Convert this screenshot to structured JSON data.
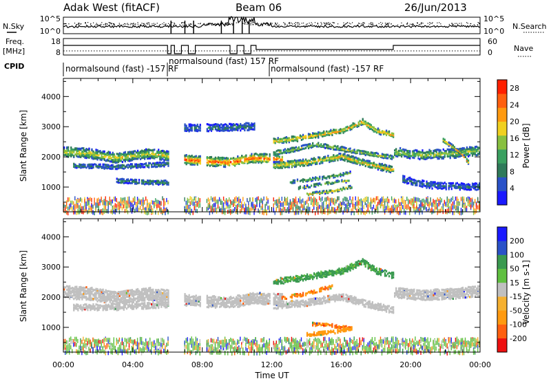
{
  "header": {
    "radar": "Adak West (fitACF)",
    "beam": "Beam 06",
    "date": "26/Jun/2013"
  },
  "noise_panel": {
    "left_label": "N.Sky",
    "right_label": "N.Search",
    "left_ticks": [
      "10^5",
      "10^0"
    ],
    "right_ticks": [
      "10^5",
      "10^0"
    ]
  },
  "freq_panel": {
    "left_label_1": "Freq.",
    "left_label_2": "[MHz]",
    "right_label": "Nave",
    "left_ticks": [
      "18",
      "8"
    ],
    "right_ticks": [
      "60",
      "0"
    ]
  },
  "cpid": {
    "label": "CPID",
    "segments": [
      {
        "text": "normalsound (fast) -157 RF",
        "start_hour": 0,
        "end_hour": 6
      },
      {
        "text": "normalsound (fast) 157 RF",
        "start_hour": 6,
        "end_hour": 12
      },
      {
        "text": "normalsound (fast) -157 RF",
        "start_hour": 12,
        "end_hour": 24
      }
    ]
  },
  "colorbars": {
    "power": {
      "label": "Power [dB]",
      "ticks": [
        "28",
        "24",
        "20",
        "16",
        "12",
        "8",
        "4"
      ]
    },
    "velocity": {
      "label": "Velocity [m s-1]",
      "ticks": [
        "200",
        "100",
        "50",
        "15",
        "-15",
        "-50",
        "-100",
        "-200"
      ]
    }
  },
  "chart_data": [
    {
      "type": "heatmap",
      "panel": "power",
      "ylabel": "Slant Range [km]",
      "ylim": [
        180,
        4600
      ],
      "yticks": [
        1000,
        2000,
        3000,
        4000
      ],
      "xlim": [
        0,
        24
      ],
      "xticks": [
        "00:00",
        "04:00",
        "08:00",
        "12:00",
        "16:00",
        "20:00",
        "00:00"
      ],
      "colorbar_label": "Power [dB]",
      "colorbar_range": [
        0,
        30
      ],
      "colors": [
        "#1a1aff",
        "#2a52c8",
        "#2f7a5a",
        "#3aa060",
        "#88c040",
        "#f0d020",
        "#ff9a10",
        "#ff6010",
        "#ff2000"
      ],
      "bands": [
        {
          "t": [
            0,
            1.5,
            3,
            5,
            6.1
          ],
          "r": [
            2200,
            2150,
            2000,
            2150,
            2050
          ],
          "width": 320,
          "peak": 18
        },
        {
          "t": [
            0.5,
            3,
            6.1
          ],
          "r": [
            1750,
            1700,
            1800
          ],
          "width": 160,
          "peak": 9
        },
        {
          "t": [
            3,
            4.5,
            6.1
          ],
          "r": [
            1250,
            1200,
            1180
          ],
          "width": 150,
          "peak": 10
        },
        {
          "t": [
            6.9,
            8,
            9.5,
            11,
            12.6
          ],
          "r": [
            1950,
            1900,
            1850,
            2000,
            1950
          ],
          "width": 300,
          "peak": 26
        },
        {
          "t": [
            6.9,
            9,
            11
          ],
          "r": [
            3000,
            3000,
            3050
          ],
          "width": 260,
          "peak": 8
        },
        {
          "t": [
            12,
            13.5,
            15,
            16,
            17.2,
            18,
            19
          ],
          "r": [
            2550,
            2650,
            2800,
            2900,
            3200,
            2900,
            2750
          ],
          "width": 180,
          "peak": 22
        },
        {
          "t": [
            12,
            13,
            14.5,
            16,
            17,
            18,
            19
          ],
          "r": [
            2150,
            2250,
            2450,
            2300,
            2200,
            2100,
            2000
          ],
          "width": 150,
          "peak": 16
        },
        {
          "t": [
            12,
            14,
            16,
            17.5,
            19
          ],
          "r": [
            1750,
            1850,
            2050,
            1800,
            1600
          ],
          "width": 220,
          "peak": 20
        },
        {
          "t": [
            13,
            15,
            16.5
          ],
          "r": [
            1200,
            1350,
            1500
          ],
          "width": 100,
          "peak": 14
        },
        {
          "t": [
            13.5,
            15,
            16.4
          ],
          "r": [
            1000,
            1150,
            1250
          ],
          "width": 90,
          "peak": 15
        },
        {
          "t": [
            14,
            15.5,
            16.6
          ],
          "r": [
            800,
            900,
            1050
          ],
          "width": 90,
          "peak": 20
        },
        {
          "t": [
            19,
            20.5,
            22.5,
            24
          ],
          "r": [
            2200,
            2100,
            2150,
            2250
          ],
          "width": 300,
          "peak": 16
        },
        {
          "t": [
            21.8,
            22.8,
            23.3
          ],
          "r": [
            2600,
            2200,
            1850
          ],
          "width": 120,
          "peak": 22
        },
        {
          "t": [
            19.5,
            21,
            23,
            24
          ],
          "r": [
            1300,
            1100,
            1050,
            1050
          ],
          "width": 220,
          "peak": 8
        }
      ]
    },
    {
      "type": "heatmap",
      "panel": "velocity",
      "xlabel": "Time UT",
      "ylabel": "Slant Range [km]",
      "ylim": [
        180,
        4600
      ],
      "yticks": [
        1000,
        2000,
        3000,
        4000
      ],
      "xlim": [
        0,
        24
      ],
      "xticks": [
        "00:00",
        "04:00",
        "08:00",
        "12:00",
        "16:00",
        "20:00",
        "00:00"
      ],
      "colorbar_label": "Velocity [m s-1]",
      "colorbar_range": [
        -200,
        200
      ],
      "colors": [
        "#ee1010",
        "#ff6010",
        "#ff9a10",
        "#f5b030",
        "#c0c0c0",
        "#60c040",
        "#3a9a50",
        "#2a52c8",
        "#1a1aff"
      ],
      "bands": [
        {
          "t": [
            0,
            1.5,
            3,
            5,
            6.1
          ],
          "r": [
            2200,
            2150,
            2000,
            2150,
            2050
          ],
          "width": 420,
          "vel": 0
        },
        {
          "t": [
            0.5,
            3,
            6.1
          ],
          "r": [
            1700,
            1700,
            1800
          ],
          "width": 200,
          "vel": 0
        },
        {
          "t": [
            6.9,
            8,
            9.5,
            11,
            12.6
          ],
          "r": [
            1950,
            1900,
            1850,
            2000,
            1950
          ],
          "width": 380,
          "vel": 0
        },
        {
          "t": [
            12,
            13.5,
            15,
            16,
            17.2,
            18,
            19
          ],
          "r": [
            2550,
            2650,
            2800,
            2900,
            3200,
            2900,
            2750
          ],
          "width": 200,
          "vel": 40
        },
        {
          "t": [
            12.5,
            14,
            15.5
          ],
          "r": [
            2000,
            2150,
            2400
          ],
          "width": 110,
          "vel": -70
        },
        {
          "t": [
            12,
            14,
            16,
            17.5,
            19
          ],
          "r": [
            1750,
            1850,
            2050,
            1800,
            1600
          ],
          "width": 220,
          "vel": 0
        },
        {
          "t": [
            14.3,
            15.3,
            16.5
          ],
          "r": [
            1150,
            1100,
            1000
          ],
          "width": 110,
          "vel": -80
        },
        {
          "t": [
            14,
            15.5,
            16.6
          ],
          "r": [
            800,
            880,
            1000
          ],
          "width": 110,
          "vel": -60
        },
        {
          "t": [
            19,
            20.5,
            22.5,
            24
          ],
          "r": [
            2200,
            2100,
            2150,
            2250
          ],
          "width": 340,
          "vel": 0
        }
      ]
    }
  ]
}
